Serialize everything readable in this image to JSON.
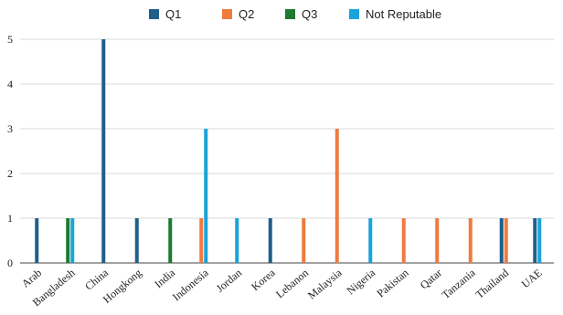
{
  "chart_data": {
    "type": "bar",
    "title": "",
    "xlabel": "",
    "ylabel": "",
    "ylim": [
      0,
      5
    ],
    "yticks": [
      0,
      1,
      2,
      3,
      4,
      5
    ],
    "grid": "horizontal",
    "legend_position": "top-center",
    "categories": [
      "Arab",
      "Bangladesh",
      "China",
      "Hongkong",
      "India",
      "Indonesia",
      "Jordan",
      "Korea",
      "Lebanon",
      "Malaysia",
      "Nigeria",
      "Pakistan",
      "Qatar",
      "Tanzania",
      "Thailand",
      "UAE"
    ],
    "series": [
      {
        "name": "Q1",
        "color": "#1f5f8b",
        "values": [
          1,
          0,
          5,
          1,
          0,
          0,
          0,
          1,
          0,
          0,
          0,
          0,
          0,
          0,
          1,
          1
        ]
      },
      {
        "name": "Q2",
        "color": "#ef7b3e",
        "values": [
          0,
          0,
          0,
          0,
          0,
          1,
          0,
          0,
          1,
          3,
          0,
          1,
          1,
          1,
          1,
          0
        ]
      },
      {
        "name": "Q3",
        "color": "#1d7a2e",
        "values": [
          0,
          1,
          0,
          0,
          1,
          0,
          0,
          0,
          0,
          0,
          0,
          0,
          0,
          0,
          0,
          0
        ]
      },
      {
        "name": "Not Reputable",
        "color": "#1aa3d9",
        "values": [
          0,
          1,
          0,
          0,
          0,
          3,
          1,
          0,
          0,
          0,
          1,
          0,
          0,
          0,
          0,
          1
        ]
      }
    ]
  }
}
